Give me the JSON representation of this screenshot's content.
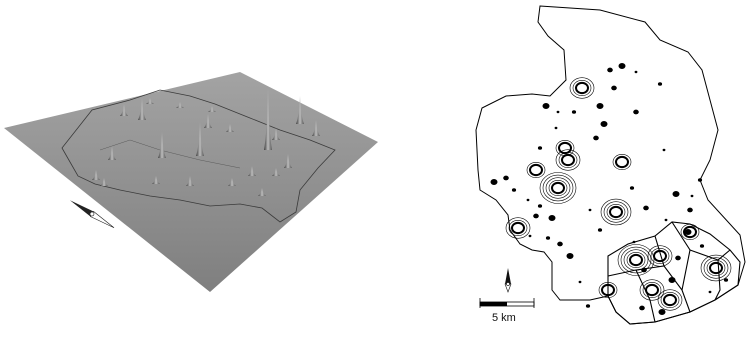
{
  "left_figure": {
    "surface_color": "#8f8f8f",
    "surface_shadow_color": "#6e6e6e",
    "boundary_color": "#3a3a3a",
    "peak_color": "#4a4a4a",
    "north_arrow_icon": "north-arrow-icon"
  },
  "right_figure": {
    "boundary_color": "#000000",
    "contour_color": "#000000",
    "background_color": "#ffffff",
    "scale_bar": {
      "label": "5 km"
    },
    "north_arrow_icon": "north-arrow-icon"
  }
}
